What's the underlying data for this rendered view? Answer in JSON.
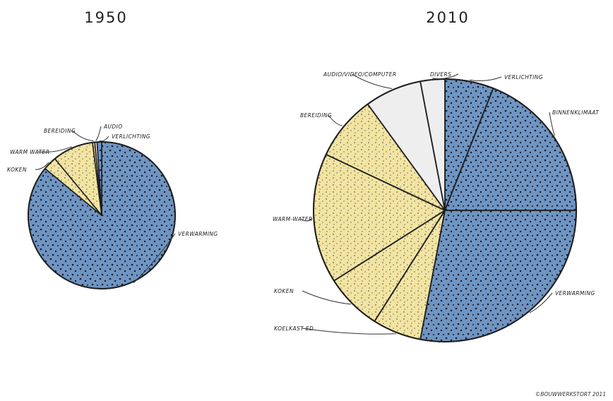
{
  "credit": "©BOUWWERKSTORT 2011",
  "colors": {
    "blue": "#6f95c2",
    "yellow": "#f2e4a2",
    "grey": "#eeeeee",
    "outline": "#1e1e1e"
  },
  "chart_data": [
    {
      "type": "pie",
      "title": "1950",
      "slices": [
        {
          "label": "VERWARMING",
          "value": 86,
          "color": "blue"
        },
        {
          "label": "KOKEN",
          "value": 3,
          "color": "yellow"
        },
        {
          "label": "WARM WATER",
          "value": 9,
          "color": "yellow"
        },
        {
          "label": "BEREIDING",
          "value": 0.5,
          "color": "yellow"
        },
        {
          "label": "AUDIO",
          "value": 0.5,
          "color": "grey"
        },
        {
          "label": "VERLICHTING",
          "value": 1,
          "color": "blue"
        }
      ]
    },
    {
      "type": "pie",
      "title": "2010",
      "slices": [
        {
          "label": "VERLICHTING",
          "value": 6,
          "color": "blue"
        },
        {
          "label": "BINNENKLIMAAT",
          "value": 19,
          "color": "blue"
        },
        {
          "label": "VERWARMING",
          "value": 28,
          "color": "blue"
        },
        {
          "label": "KOELKAST ED",
          "value": 6,
          "color": "yellow"
        },
        {
          "label": "KOKEN",
          "value": 7,
          "color": "yellow"
        },
        {
          "label": "WARM-WATER",
          "value": 16,
          "color": "yellow"
        },
        {
          "label": "BEREIDING",
          "value": 8,
          "color": "yellow"
        },
        {
          "label": "AUDIO/VIDEO/COMPUTER",
          "value": 7,
          "color": "grey"
        },
        {
          "label": "DIVERS",
          "value": 3,
          "color": "grey"
        }
      ]
    }
  ]
}
